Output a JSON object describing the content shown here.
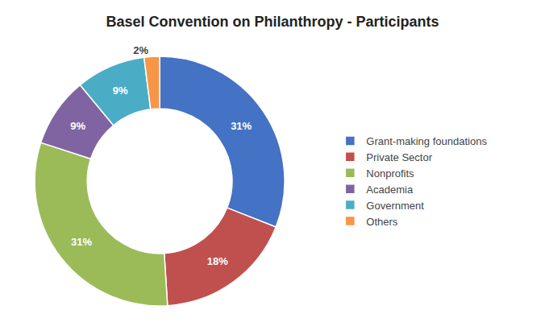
{
  "chart_data": {
    "type": "donut",
    "title": "Basel Convention on Philanthropy - Participants",
    "categories": [
      "Grant-making foundations",
      "Private Sector",
      "Nonprofits",
      "Academia",
      "Government",
      "Others"
    ],
    "values": [
      31,
      18,
      31,
      9,
      9,
      2
    ],
    "value_labels": [
      "31%",
      "18%",
      "31%",
      "9%",
      "9%",
      "2%"
    ],
    "colors": [
      "#4472C4",
      "#C0504D",
      "#9BBB59",
      "#8064A2",
      "#4BACC6",
      "#F79646"
    ],
    "data_labels": true,
    "legend": "right"
  }
}
